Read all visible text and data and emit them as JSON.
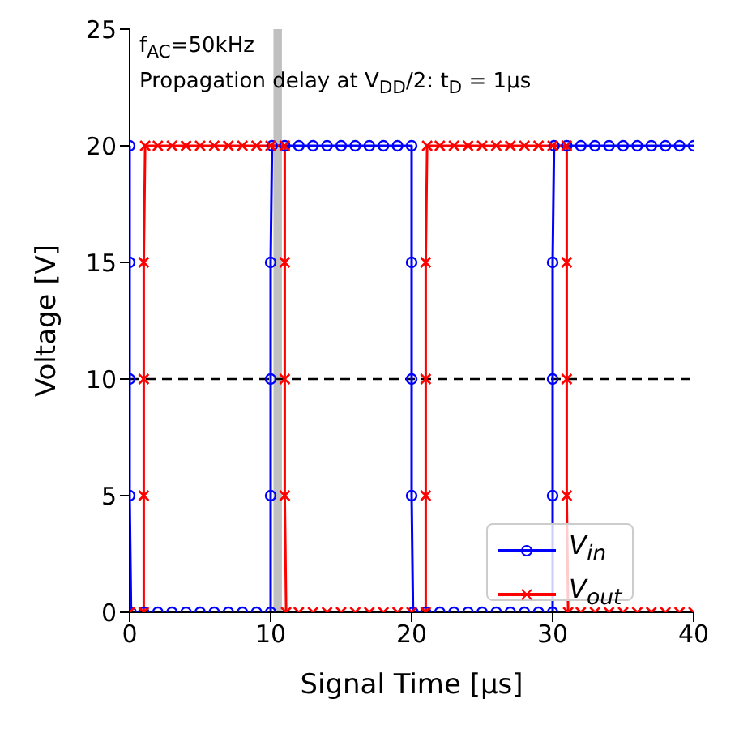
{
  "chart_data": {
    "type": "line",
    "xlabel": "Signal Time  [μs]",
    "ylabel": "Voltage  [V]",
    "annotations": [
      "f$_{AC}$=50kHz",
      "Propagation delay at V$_{DD}$/2: t$_{D}$ = 1μs"
    ],
    "xlim": [
      0,
      40
    ],
    "xticks": [
      0,
      10,
      20,
      30,
      40
    ],
    "ylim": [
      0,
      25
    ],
    "yticks": [
      0,
      5,
      10,
      15,
      20,
      25
    ],
    "grid": false,
    "legend": "bottom right",
    "line_style": "solid",
    "ref_lines": [
      {
        "axis": "y",
        "value": 10,
        "color": "#000000",
        "line_style": "dashed"
      }
    ],
    "bands": [
      {
        "axis": "x",
        "from": 10.2,
        "to": 10.8,
        "color": "#c0c0c0"
      }
    ],
    "series": [
      {
        "name": "V$_{in}$",
        "color": "#0000ff",
        "marker": "circle",
        "x": [
          0,
          0,
          0,
          0,
          0.1,
          1,
          2,
          3,
          4,
          5,
          6,
          7,
          8,
          9,
          10,
          10,
          10,
          10,
          10.1,
          11,
          12,
          13,
          14,
          15,
          16,
          17,
          18,
          19,
          20,
          20,
          20,
          20,
          20.1,
          21,
          22,
          23,
          24,
          25,
          26,
          27,
          28,
          29,
          30,
          30,
          30,
          30,
          30.1,
          31,
          32,
          33,
          34,
          35,
          36,
          37,
          38,
          39,
          40
        ],
        "values": [
          20,
          15,
          10,
          5,
          0,
          0,
          0,
          0,
          0,
          0,
          0,
          0,
          0,
          0,
          0,
          5,
          10,
          15,
          20,
          20,
          20,
          20,
          20,
          20,
          20,
          20,
          20,
          20,
          20,
          15,
          10,
          5,
          0,
          0,
          0,
          0,
          0,
          0,
          0,
          0,
          0,
          0,
          0,
          5,
          10,
          15,
          20,
          20,
          20,
          20,
          20,
          20,
          20,
          20,
          20,
          20,
          20
        ]
      },
      {
        "name": "V$_{out}$",
        "color": "#ff0000",
        "marker": "cross",
        "x": [
          0,
          1,
          1,
          1,
          1,
          1.1,
          2,
          3,
          4,
          5,
          6,
          7,
          8,
          9,
          10,
          11,
          11,
          11,
          11,
          11.1,
          12,
          13,
          14,
          15,
          16,
          17,
          18,
          19,
          20,
          21,
          21,
          21,
          21,
          21.1,
          22,
          23,
          24,
          25,
          26,
          27,
          28,
          29,
          30,
          31,
          31,
          31,
          31,
          31.1,
          32,
          33,
          34,
          35,
          36,
          37,
          38,
          39,
          40
        ],
        "values": [
          0,
          0,
          5,
          10,
          15,
          20,
          20,
          20,
          20,
          20,
          20,
          20,
          20,
          20,
          20,
          20,
          15,
          10,
          5,
          0,
          0,
          0,
          0,
          0,
          0,
          0,
          0,
          0,
          0,
          0,
          5,
          10,
          15,
          20,
          20,
          20,
          20,
          20,
          20,
          20,
          20,
          20,
          20,
          20,
          15,
          10,
          5,
          0,
          0,
          0,
          0,
          0,
          0,
          0,
          0,
          0,
          0
        ]
      }
    ]
  }
}
